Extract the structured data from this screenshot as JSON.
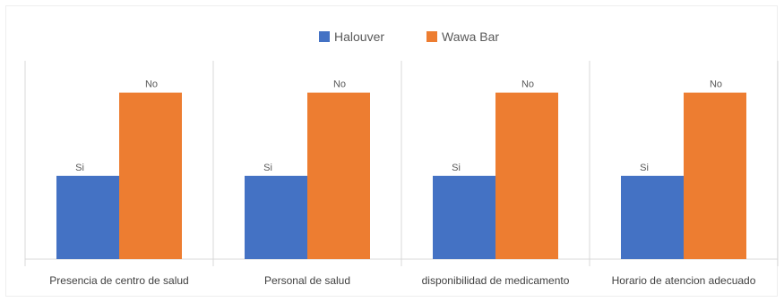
{
  "chart_data": {
    "type": "bar",
    "title": "",
    "xlabel": "",
    "ylabel": "",
    "categories": [
      "Presencia de centro de salud",
      "Personal de salud",
      "disponibilidad de medicamento",
      "Horario de atencion adecuado"
    ],
    "series": [
      {
        "name": "Halouver",
        "color": "#4472C4",
        "values": [
          0.5,
          0.5,
          0.5,
          0.5
        ],
        "data_labels": [
          "Si",
          "Si",
          "Si",
          "Si"
        ]
      },
      {
        "name": "Wawa Bar",
        "color": "#ED7D31",
        "values": [
          1,
          1,
          1,
          1
        ],
        "data_labels": [
          "No",
          "No",
          "No",
          "No"
        ]
      }
    ],
    "ylim": [
      0,
      1.1
    ],
    "grid": false,
    "legend_position": "top-center"
  }
}
